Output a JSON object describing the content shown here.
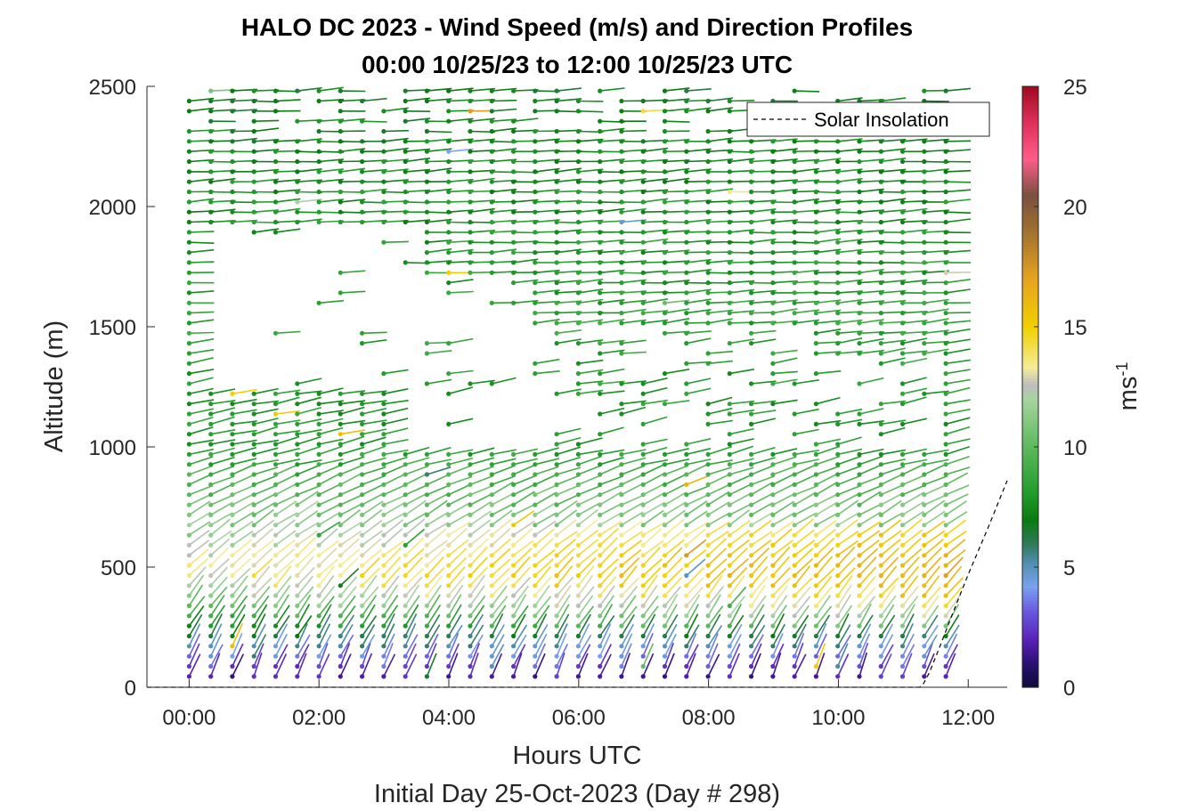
{
  "chart_data": {
    "type": "scatter",
    "title": "HALO DC 2023 - Wind Speed (m/s) and Direction Profiles",
    "subtitle": "00:00 10/25/23 to 12:00 10/25/23  UTC",
    "xlabel": "Hours UTC",
    "xlabel2": "Initial Day 25-Oct-2023 (Day # 298)",
    "ylabel": "Altitude (m)",
    "colorbar_label_base": "ms",
    "colorbar_label_exp": "-1",
    "x_tick_labels": [
      "00:00",
      "02:00",
      "04:00",
      "06:00",
      "08:00",
      "10:00",
      "12:00"
    ],
    "x_ticks_hours": [
      0,
      2,
      4,
      6,
      8,
      10,
      12
    ],
    "xlim_hours": [
      -0.65,
      12.6
    ],
    "y_tick_labels": [
      "0",
      "500",
      "1000",
      "1500",
      "2000",
      "2500"
    ],
    "y_ticks": [
      0,
      500,
      1000,
      1500,
      2000,
      2500
    ],
    "ylim": [
      0,
      2500
    ],
    "colorbar_tick_labels": [
      "0",
      "5",
      "10",
      "15",
      "20",
      "25"
    ],
    "colorbar_ticks": [
      0,
      5,
      10,
      15,
      20,
      25
    ],
    "clim": [
      0,
      25
    ],
    "legend": {
      "label": "Solar Insolation",
      "placement": "top-right"
    },
    "profile_interval_hours": 0.333,
    "profile_start_hour": 0,
    "profile_end_hour": 11.67,
    "altitude_step_m": 42,
    "altitude_max_m": 2490,
    "solar_insolation": {
      "x_hours": [
        -0.65,
        11.25,
        11.3,
        11.4,
        11.55,
        11.75,
        12.0,
        12.3,
        12.6
      ],
      "y_m": [
        0,
        0,
        10,
        60,
        160,
        300,
        470,
        660,
        860
      ]
    },
    "wind_speed_profile_m_s": [
      {
        "alt": 50,
        "speed": 2.0
      },
      {
        "alt": 150,
        "speed": 4.5
      },
      {
        "alt": 250,
        "speed": 7.5
      },
      {
        "alt": 350,
        "speed": 11.0
      },
      {
        "alt": 450,
        "speed": 13.5
      },
      {
        "alt": 600,
        "speed": 12.0
      },
      {
        "alt": 800,
        "speed": 10.0
      },
      {
        "alt": 1000,
        "speed": 8.0
      },
      {
        "alt": 1500,
        "speed": 8.5
      },
      {
        "alt": 2500,
        "speed": 7.0
      }
    ],
    "colormap": [
      {
        "v": 0.0,
        "c": "#0b0b3a"
      },
      {
        "v": 1.0,
        "c": "#2a1070"
      },
      {
        "v": 2.0,
        "c": "#5a20b8"
      },
      {
        "v": 3.2,
        "c": "#6a5be0"
      },
      {
        "v": 4.2,
        "c": "#7aa2ee"
      },
      {
        "v": 5.2,
        "c": "#4f8fb0"
      },
      {
        "v": 6.0,
        "c": "#2f7a55"
      },
      {
        "v": 7.0,
        "c": "#0a7a10"
      },
      {
        "v": 8.0,
        "c": "#1f9a2a"
      },
      {
        "v": 10.0,
        "c": "#5db85d"
      },
      {
        "v": 12.0,
        "c": "#a6d4a0"
      },
      {
        "v": 12.6,
        "c": "#bdbdbd"
      },
      {
        "v": 13.3,
        "c": "#f4ec9a"
      },
      {
        "v": 15.0,
        "c": "#f2d000"
      },
      {
        "v": 17.0,
        "c": "#e6a321"
      },
      {
        "v": 19.0,
        "c": "#a07030"
      },
      {
        "v": 20.5,
        "c": "#7a5040"
      },
      {
        "v": 22.0,
        "c": "#ff5c8a"
      },
      {
        "v": 23.5,
        "c": "#e0305a"
      },
      {
        "v": 25.0,
        "c": "#a00a20"
      }
    ]
  }
}
